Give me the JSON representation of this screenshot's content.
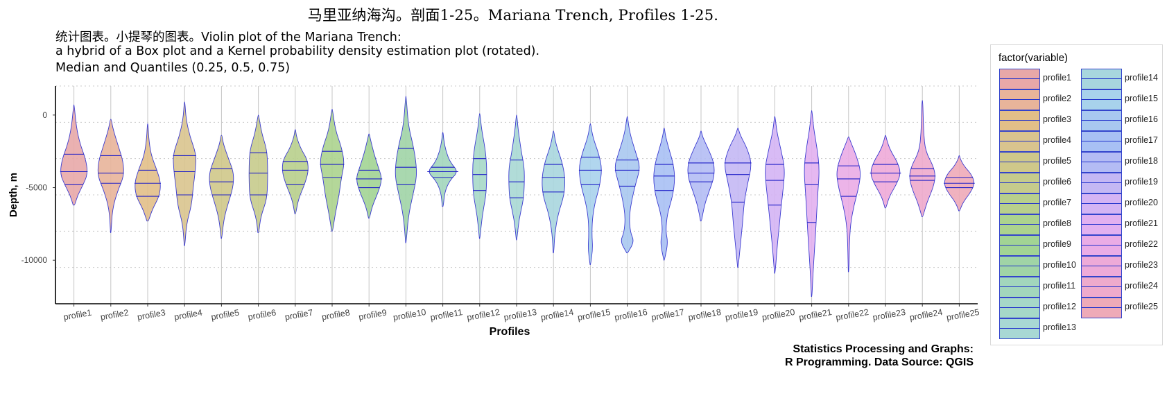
{
  "title": "马里亚纳海沟。剖面1-25。Mariana Trench, Profiles 1-25.",
  "subtitle_lines": [
    "统计图表。小提琴的图表。Violin plot of the Mariana Trench:",
    "a hybrid of a Box plot and a Kernel probability density estimation plot (rotated).",
    "Median and Quantiles (0.25, 0.5, 0.75)"
  ],
  "caption_lines": [
    "Statistics Processing and Graphs:",
    "R Programming. Data Source: QGIS"
  ],
  "legend": {
    "title": "factor(variable)"
  },
  "chart_data": {
    "type": "violin",
    "xlabel": "Profiles",
    "ylabel": "Depth, m",
    "ylim": [
      -13000,
      2000
    ],
    "y_ticks": [
      0,
      -5000,
      -10000
    ],
    "y_tick_labels": [
      "0",
      "-5000",
      "-10000"
    ],
    "grid": true,
    "legend_position": "right",
    "categories": [
      "profile1",
      "profile2",
      "profile3",
      "profile4",
      "profile5",
      "profile6",
      "profile7",
      "profile8",
      "profile9",
      "profile10",
      "profile11",
      "profile12",
      "profile13",
      "profile14",
      "profile15",
      "profile16",
      "profile17",
      "profile18",
      "profile19",
      "profile20",
      "profile21",
      "profile22",
      "profile23",
      "profile24",
      "profile25"
    ],
    "colors": [
      "#e8a8a8",
      "#e8b49a",
      "#e2bf88",
      "#d9c48e",
      "#cfc88a",
      "#c6cb8c",
      "#b8cf8c",
      "#acd38e",
      "#a2d494",
      "#a0d4a6",
      "#a2d6bc",
      "#a6d8c8",
      "#a8d8d4",
      "#a8d6de",
      "#a8d2ec",
      "#a8c8f0",
      "#a8c0f4",
      "#b4bcf4",
      "#c4b8f4",
      "#d4b4f4",
      "#e2b0f0",
      "#eaace6",
      "#eeaad8",
      "#eeaacc",
      "#eeaab8"
    ],
    "series": [
      {
        "name": "profile1",
        "min": -6200,
        "max": 700,
        "q1": -4800,
        "median": -3900,
        "q3": -2700,
        "shape": [
          [
            -6200,
            0.05
          ],
          [
            -5500,
            0.25
          ],
          [
            -4800,
            0.6
          ],
          [
            -4000,
            0.9
          ],
          [
            -3000,
            0.75
          ],
          [
            -2000,
            0.4
          ],
          [
            -800,
            0.15
          ],
          [
            700,
            0.02
          ]
        ]
      },
      {
        "name": "profile2",
        "min": -8100,
        "max": -300,
        "q1": -4700,
        "median": -4000,
        "q3": -2800,
        "shape": [
          [
            -8100,
            0.02
          ],
          [
            -6500,
            0.1
          ],
          [
            -5200,
            0.45
          ],
          [
            -4200,
            0.85
          ],
          [
            -3200,
            0.8
          ],
          [
            -2200,
            0.5
          ],
          [
            -1000,
            0.15
          ],
          [
            -300,
            0.03
          ]
        ]
      },
      {
        "name": "profile3",
        "min": -7300,
        "max": -600,
        "q1": -5600,
        "median": -4700,
        "q3": -3800,
        "shape": [
          [
            -7300,
            0.05
          ],
          [
            -6500,
            0.3
          ],
          [
            -5600,
            0.75
          ],
          [
            -4700,
            0.85
          ],
          [
            -3800,
            0.6
          ],
          [
            -2700,
            0.2
          ],
          [
            -1500,
            0.06
          ],
          [
            -600,
            0.02
          ]
        ]
      },
      {
        "name": "profile4",
        "min": -9000,
        "max": 900,
        "q1": -5500,
        "median": -3900,
        "q3": -2800,
        "shape": [
          [
            -9000,
            0.02
          ],
          [
            -7500,
            0.12
          ],
          [
            -6200,
            0.45
          ],
          [
            -5000,
            0.55
          ],
          [
            -3800,
            0.7
          ],
          [
            -2700,
            0.75
          ],
          [
            -1500,
            0.35
          ],
          [
            -300,
            0.1
          ],
          [
            900,
            0.02
          ]
        ]
      },
      {
        "name": "profile5",
        "min": -8500,
        "max": -1400,
        "q1": -5500,
        "median": -4600,
        "q3": -3700,
        "shape": [
          [
            -8500,
            0.02
          ],
          [
            -7200,
            0.15
          ],
          [
            -6200,
            0.4
          ],
          [
            -5000,
            0.75
          ],
          [
            -4000,
            0.8
          ],
          [
            -3000,
            0.45
          ],
          [
            -2000,
            0.12
          ],
          [
            -1400,
            0.03
          ]
        ]
      },
      {
        "name": "profile6",
        "min": -8100,
        "max": 0,
        "q1": -5500,
        "median": -4000,
        "q3": -2600,
        "shape": [
          [
            -8100,
            0.03
          ],
          [
            -7000,
            0.15
          ],
          [
            -5800,
            0.55
          ],
          [
            -4600,
            0.6
          ],
          [
            -3500,
            0.6
          ],
          [
            -2400,
            0.55
          ],
          [
            -1200,
            0.2
          ],
          [
            0,
            0.02
          ]
        ]
      },
      {
        "name": "profile7",
        "min": -6800,
        "max": -1000,
        "q1": -4800,
        "median": -3800,
        "q3": -3200,
        "shape": [
          [
            -6800,
            0.03
          ],
          [
            -5800,
            0.2
          ],
          [
            -4800,
            0.6
          ],
          [
            -3900,
            0.85
          ],
          [
            -3100,
            0.8
          ],
          [
            -2300,
            0.35
          ],
          [
            -1500,
            0.08
          ],
          [
            -1000,
            0.02
          ]
        ]
      },
      {
        "name": "profile8",
        "min": -8000,
        "max": 400,
        "q1": -4300,
        "median": -3400,
        "q3": -2500,
        "shape": [
          [
            -8000,
            0.03
          ],
          [
            -6800,
            0.2
          ],
          [
            -5500,
            0.45
          ],
          [
            -4300,
            0.6
          ],
          [
            -3300,
            0.8
          ],
          [
            -2200,
            0.6
          ],
          [
            -1000,
            0.2
          ],
          [
            400,
            0.02
          ]
        ]
      },
      {
        "name": "profile9",
        "min": -7100,
        "max": -1300,
        "q1": -5000,
        "median": -4400,
        "q3": -3800,
        "shape": [
          [
            -7100,
            0.03
          ],
          [
            -6300,
            0.2
          ],
          [
            -5300,
            0.6
          ],
          [
            -4400,
            0.85
          ],
          [
            -3600,
            0.6
          ],
          [
            -2600,
            0.3
          ],
          [
            -1700,
            0.1
          ],
          [
            -1300,
            0.02
          ]
        ]
      },
      {
        "name": "profile10",
        "min": -8800,
        "max": 1300,
        "q1": -4800,
        "median": -3600,
        "q3": -2300,
        "shape": [
          [
            -8800,
            0.02
          ],
          [
            -7000,
            0.15
          ],
          [
            -5500,
            0.45
          ],
          [
            -4300,
            0.7
          ],
          [
            -3200,
            0.65
          ],
          [
            -2000,
            0.45
          ],
          [
            -700,
            0.15
          ],
          [
            1300,
            0.02
          ]
        ]
      },
      {
        "name": "profile11",
        "min": -6300,
        "max": -1200,
        "q1": -4300,
        "median": -3900,
        "q3": -3600,
        "shape": [
          [
            -6300,
            0.03
          ],
          [
            -5300,
            0.12
          ],
          [
            -4500,
            0.45
          ],
          [
            -3900,
            1.0
          ],
          [
            -3300,
            0.5
          ],
          [
            -2500,
            0.2
          ],
          [
            -1700,
            0.06
          ],
          [
            -1200,
            0.02
          ]
        ]
      },
      {
        "name": "profile12",
        "min": -8500,
        "max": 100,
        "q1": -5200,
        "median": -4100,
        "q3": -3000,
        "shape": [
          [
            -8500,
            0.02
          ],
          [
            -7000,
            0.15
          ],
          [
            -5600,
            0.4
          ],
          [
            -4500,
            0.45
          ],
          [
            -3400,
            0.45
          ],
          [
            -2300,
            0.35
          ],
          [
            -1000,
            0.12
          ],
          [
            100,
            0.02
          ]
        ]
      },
      {
        "name": "profile13",
        "min": -8600,
        "max": 0,
        "q1": -5700,
        "median": -4600,
        "q3": -3100,
        "shape": [
          [
            -8600,
            0.02
          ],
          [
            -7200,
            0.15
          ],
          [
            -5800,
            0.45
          ],
          [
            -4800,
            0.5
          ],
          [
            -3600,
            0.5
          ],
          [
            -2500,
            0.3
          ],
          [
            -1000,
            0.1
          ],
          [
            0,
            0.02
          ]
        ]
      },
      {
        "name": "profile14",
        "min": -9500,
        "max": -1100,
        "q1": -5300,
        "median": -4300,
        "q3": -3400,
        "shape": [
          [
            -9500,
            0.02
          ],
          [
            -8200,
            0.08
          ],
          [
            -6800,
            0.3
          ],
          [
            -5500,
            0.7
          ],
          [
            -4300,
            0.75
          ],
          [
            -3200,
            0.55
          ],
          [
            -2000,
            0.15
          ],
          [
            -1100,
            0.02
          ]
        ]
      },
      {
        "name": "profile15",
        "min": -10300,
        "max": -600,
        "q1": -4800,
        "median": -3800,
        "q3": -2900,
        "shape": [
          [
            -10300,
            0.02
          ],
          [
            -9200,
            0.15
          ],
          [
            -8300,
            0.1
          ],
          [
            -7200,
            0.12
          ],
          [
            -6000,
            0.3
          ],
          [
            -4900,
            0.6
          ],
          [
            -3700,
            0.75
          ],
          [
            -2700,
            0.55
          ],
          [
            -1500,
            0.15
          ],
          [
            -600,
            0.02
          ]
        ]
      },
      {
        "name": "profile16",
        "min": -9500,
        "max": -100,
        "q1": -4900,
        "median": -3800,
        "q3": -3100,
        "shape": [
          [
            -9500,
            0.03
          ],
          [
            -8700,
            0.45
          ],
          [
            -8100,
            0.2
          ],
          [
            -7000,
            0.12
          ],
          [
            -5800,
            0.3
          ],
          [
            -4700,
            0.55
          ],
          [
            -3600,
            0.85
          ],
          [
            -2600,
            0.55
          ],
          [
            -1200,
            0.15
          ],
          [
            -100,
            0.02
          ]
        ]
      },
      {
        "name": "profile17",
        "min": -10000,
        "max": -900,
        "q1": -5200,
        "median": -4200,
        "q3": -3400,
        "shape": [
          [
            -10000,
            0.02
          ],
          [
            -8800,
            0.25
          ],
          [
            -8000,
            0.1
          ],
          [
            -6800,
            0.2
          ],
          [
            -5600,
            0.55
          ],
          [
            -4400,
            0.7
          ],
          [
            -3400,
            0.6
          ],
          [
            -2300,
            0.3
          ],
          [
            -1400,
            0.08
          ],
          [
            -900,
            0.02
          ]
        ]
      },
      {
        "name": "profile18",
        "min": -7300,
        "max": -1100,
        "q1": -4600,
        "median": -4000,
        "q3": -3300,
        "shape": [
          [
            -7300,
            0.03
          ],
          [
            -6300,
            0.2
          ],
          [
            -5300,
            0.5
          ],
          [
            -4300,
            0.85
          ],
          [
            -3300,
            0.85
          ],
          [
            -2300,
            0.45
          ],
          [
            -1500,
            0.1
          ],
          [
            -1100,
            0.02
          ]
        ]
      },
      {
        "name": "profile19",
        "min": -10500,
        "max": -900,
        "q1": -6000,
        "median": -4100,
        "q3": -3300,
        "shape": [
          [
            -10500,
            0.02
          ],
          [
            -9000,
            0.15
          ],
          [
            -7500,
            0.3
          ],
          [
            -6000,
            0.4
          ],
          [
            -4600,
            0.65
          ],
          [
            -3400,
            0.9
          ],
          [
            -2300,
            0.6
          ],
          [
            -1400,
            0.15
          ],
          [
            -900,
            0.02
          ]
        ]
      },
      {
        "name": "profile20",
        "min": -10900,
        "max": -100,
        "q1": -6200,
        "median": -4500,
        "q3": -3400,
        "shape": [
          [
            -10900,
            0.02
          ],
          [
            -9500,
            0.12
          ],
          [
            -8000,
            0.25
          ],
          [
            -6400,
            0.4
          ],
          [
            -5000,
            0.55
          ],
          [
            -3700,
            0.65
          ],
          [
            -2400,
            0.4
          ],
          [
            -1100,
            0.12
          ],
          [
            -100,
            0.02
          ]
        ]
      },
      {
        "name": "profile21",
        "min": -12500,
        "max": 300,
        "q1": -7400,
        "median": -4800,
        "q3": -3300,
        "shape": [
          [
            -12500,
            0.02
          ],
          [
            -11000,
            0.08
          ],
          [
            -9000,
            0.2
          ],
          [
            -7200,
            0.3
          ],
          [
            -5300,
            0.4
          ],
          [
            -3700,
            0.5
          ],
          [
            -2300,
            0.35
          ],
          [
            -900,
            0.12
          ],
          [
            300,
            0.02
          ]
        ]
      },
      {
        "name": "profile22",
        "min": -10800,
        "max": -1500,
        "q1": -5600,
        "median": -4400,
        "q3": -3500,
        "shape": [
          [
            -10800,
            0.02
          ],
          [
            -9000,
            0.05
          ],
          [
            -7500,
            0.12
          ],
          [
            -6200,
            0.35
          ],
          [
            -5000,
            0.65
          ],
          [
            -3900,
            0.8
          ],
          [
            -2800,
            0.5
          ],
          [
            -1900,
            0.15
          ],
          [
            -1500,
            0.02
          ]
        ]
      },
      {
        "name": "profile23",
        "min": -6400,
        "max": -1400,
        "q1": -4600,
        "median": -4000,
        "q3": -3400,
        "shape": [
          [
            -6400,
            0.03
          ],
          [
            -5600,
            0.25
          ],
          [
            -4800,
            0.7
          ],
          [
            -4000,
            1.0
          ],
          [
            -3200,
            0.75
          ],
          [
            -2400,
            0.3
          ],
          [
            -1700,
            0.08
          ],
          [
            -1400,
            0.02
          ]
        ]
      },
      {
        "name": "profile24",
        "min": -7000,
        "max": 1000,
        "q1": -4500,
        "median": -4200,
        "q3": -3700,
        "shape": [
          [
            -7000,
            0.03
          ],
          [
            -6000,
            0.3
          ],
          [
            -5000,
            0.7
          ],
          [
            -4200,
            0.85
          ],
          [
            -3500,
            0.7
          ],
          [
            -2500,
            0.2
          ],
          [
            -1200,
            0.08
          ],
          [
            0,
            0.05
          ],
          [
            1000,
            0.02
          ]
        ]
      },
      {
        "name": "profile25",
        "min": -6600,
        "max": -2800,
        "q1": -5000,
        "median": -4700,
        "q3": -4300,
        "shape": [
          [
            -6600,
            0.03
          ],
          [
            -6000,
            0.25
          ],
          [
            -5300,
            0.75
          ],
          [
            -4700,
            1.0
          ],
          [
            -4100,
            0.8
          ],
          [
            -3500,
            0.3
          ],
          [
            -3000,
            0.06
          ],
          [
            -2800,
            0.02
          ]
        ]
      }
    ]
  }
}
